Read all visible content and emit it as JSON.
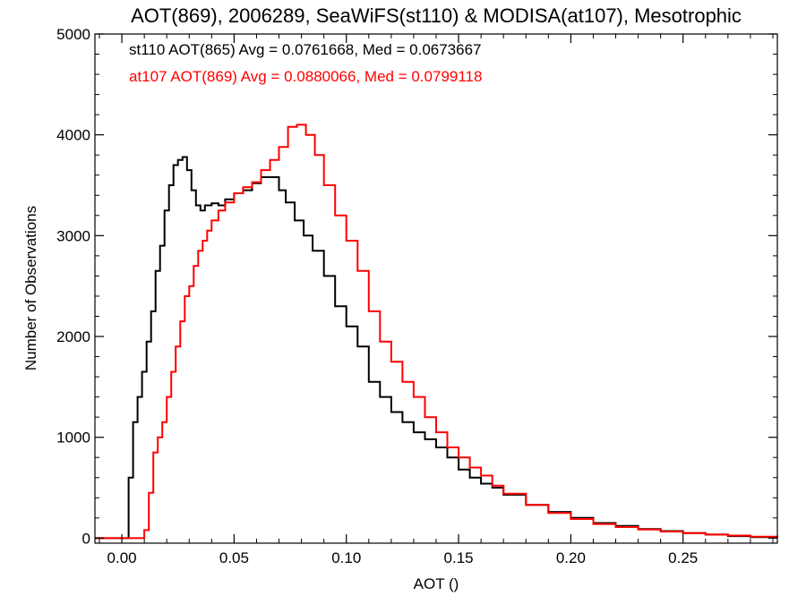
{
  "chart_data": {
    "type": "line",
    "title": "AOT(869), 2006289, SeaWiFS(st110) & MODISA(at107), Mesotrophic",
    "xlabel": "AOT ()",
    "ylabel": "Number of Observations",
    "xlim": [
      -0.012,
      0.292
    ],
    "ylim": [
      -50,
      5000
    ],
    "xticks": [
      0.0,
      0.05,
      0.1,
      0.15,
      0.2,
      0.25
    ],
    "xtick_labels": [
      "0.00",
      "0.05",
      "0.10",
      "0.15",
      "0.20",
      "0.25"
    ],
    "yticks": [
      0,
      1000,
      2000,
      3000,
      4000,
      5000
    ],
    "ytick_labels": [
      "0",
      "1000",
      "2000",
      "3000",
      "4000",
      "5000"
    ],
    "grid": false,
    "step": true,
    "legend_position": "top-left",
    "series": [
      {
        "name": "st110 AOT(865) Avg = 0.0761668, Med = 0.0673667",
        "color": "#000000",
        "points": [
          [
            -0.012,
            0
          ],
          [
            0.0015,
            0
          ],
          [
            0.003,
            600
          ],
          [
            0.005,
            1150
          ],
          [
            0.007,
            1400
          ],
          [
            0.009,
            1650
          ],
          [
            0.011,
            1950
          ],
          [
            0.013,
            2250
          ],
          [
            0.015,
            2650
          ],
          [
            0.017,
            2900
          ],
          [
            0.019,
            3250
          ],
          [
            0.021,
            3500
          ],
          [
            0.023,
            3700
          ],
          [
            0.025,
            3750
          ],
          [
            0.027,
            3780
          ],
          [
            0.029,
            3650
          ],
          [
            0.031,
            3450
          ],
          [
            0.033,
            3300
          ],
          [
            0.035,
            3250
          ],
          [
            0.037,
            3300
          ],
          [
            0.04,
            3320
          ],
          [
            0.043,
            3300
          ],
          [
            0.046,
            3360
          ],
          [
            0.05,
            3420
          ],
          [
            0.054,
            3450
          ],
          [
            0.058,
            3520
          ],
          [
            0.062,
            3580
          ],
          [
            0.066,
            3580
          ],
          [
            0.07,
            3450
          ],
          [
            0.073,
            3330
          ],
          [
            0.077,
            3150
          ],
          [
            0.081,
            3000
          ],
          [
            0.085,
            2850
          ],
          [
            0.09,
            2600
          ],
          [
            0.095,
            2300
          ],
          [
            0.1,
            2100
          ],
          [
            0.105,
            1900
          ],
          [
            0.11,
            1550
          ],
          [
            0.115,
            1400
          ],
          [
            0.12,
            1250
          ],
          [
            0.125,
            1150
          ],
          [
            0.13,
            1050
          ],
          [
            0.135,
            980
          ],
          [
            0.14,
            900
          ],
          [
            0.145,
            800
          ],
          [
            0.15,
            680
          ],
          [
            0.155,
            600
          ],
          [
            0.16,
            540
          ],
          [
            0.165,
            500
          ],
          [
            0.17,
            430
          ],
          [
            0.18,
            330
          ],
          [
            0.19,
            260
          ],
          [
            0.2,
            200
          ],
          [
            0.21,
            150
          ],
          [
            0.22,
            120
          ],
          [
            0.23,
            90
          ],
          [
            0.24,
            70
          ],
          [
            0.25,
            50
          ],
          [
            0.26,
            35
          ],
          [
            0.27,
            20
          ],
          [
            0.28,
            10
          ],
          [
            0.292,
            5
          ]
        ]
      },
      {
        "name": "at107 AOT(869) Avg = 0.0880066, Med = 0.0799118",
        "color": "#ff0000",
        "points": [
          [
            -0.012,
            0
          ],
          [
            0.009,
            0
          ],
          [
            0.01,
            80
          ],
          [
            0.012,
            450
          ],
          [
            0.014,
            850
          ],
          [
            0.016,
            1000
          ],
          [
            0.018,
            1150
          ],
          [
            0.02,
            1400
          ],
          [
            0.022,
            1650
          ],
          [
            0.024,
            1900
          ],
          [
            0.026,
            2150
          ],
          [
            0.028,
            2400
          ],
          [
            0.03,
            2500
          ],
          [
            0.032,
            2700
          ],
          [
            0.034,
            2850
          ],
          [
            0.036,
            2950
          ],
          [
            0.038,
            3050
          ],
          [
            0.04,
            3150
          ],
          [
            0.043,
            3250
          ],
          [
            0.046,
            3330
          ],
          [
            0.05,
            3420
          ],
          [
            0.054,
            3480
          ],
          [
            0.058,
            3530
          ],
          [
            0.062,
            3650
          ],
          [
            0.066,
            3750
          ],
          [
            0.07,
            3880
          ],
          [
            0.074,
            4080
          ],
          [
            0.078,
            4100
          ],
          [
            0.082,
            4000
          ],
          [
            0.086,
            3800
          ],
          [
            0.09,
            3500
          ],
          [
            0.095,
            3200
          ],
          [
            0.1,
            2950
          ],
          [
            0.105,
            2650
          ],
          [
            0.11,
            2250
          ],
          [
            0.115,
            1950
          ],
          [
            0.12,
            1750
          ],
          [
            0.125,
            1550
          ],
          [
            0.13,
            1400
          ],
          [
            0.135,
            1200
          ],
          [
            0.14,
            1050
          ],
          [
            0.145,
            900
          ],
          [
            0.15,
            800
          ],
          [
            0.155,
            700
          ],
          [
            0.16,
            620
          ],
          [
            0.165,
            520
          ],
          [
            0.17,
            440
          ],
          [
            0.18,
            330
          ],
          [
            0.19,
            250
          ],
          [
            0.2,
            190
          ],
          [
            0.21,
            140
          ],
          [
            0.22,
            110
          ],
          [
            0.23,
            85
          ],
          [
            0.24,
            65
          ],
          [
            0.25,
            50
          ],
          [
            0.26,
            35
          ],
          [
            0.27,
            25
          ],
          [
            0.28,
            15
          ],
          [
            0.292,
            5
          ]
        ]
      }
    ]
  }
}
